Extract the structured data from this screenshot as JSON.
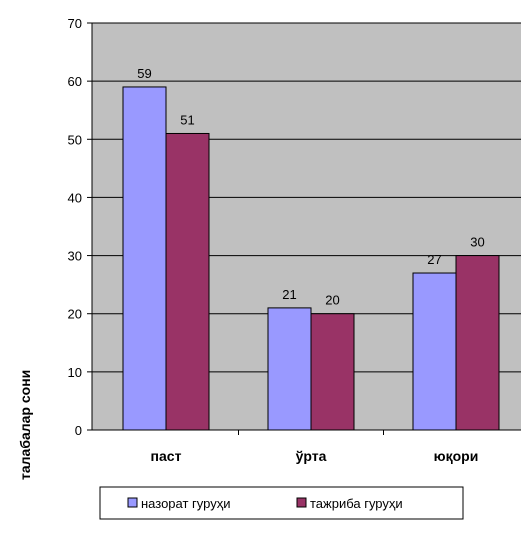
{
  "chart_data": {
    "type": "bar",
    "categories": [
      "паст",
      "ўрта",
      "юқори"
    ],
    "series": [
      {
        "name": "назорат гуруҳи",
        "values": [
          59,
          21,
          27
        ],
        "color": "#9999ff"
      },
      {
        "name": "тажриба гуруҳи",
        "values": [
          51,
          20,
          30
        ],
        "color": "#993366"
      }
    ],
    "y_ticks": [
      "0",
      "10",
      "20",
      "30",
      "40",
      "50",
      "60",
      "70"
    ],
    "ylim": [
      0,
      70
    ],
    "ylabel": "талабалар сони",
    "xlabel": "",
    "title": "",
    "grid": true,
    "legend_position": "bottom",
    "plot_background": "#c0c0c0",
    "data_labels": true
  }
}
